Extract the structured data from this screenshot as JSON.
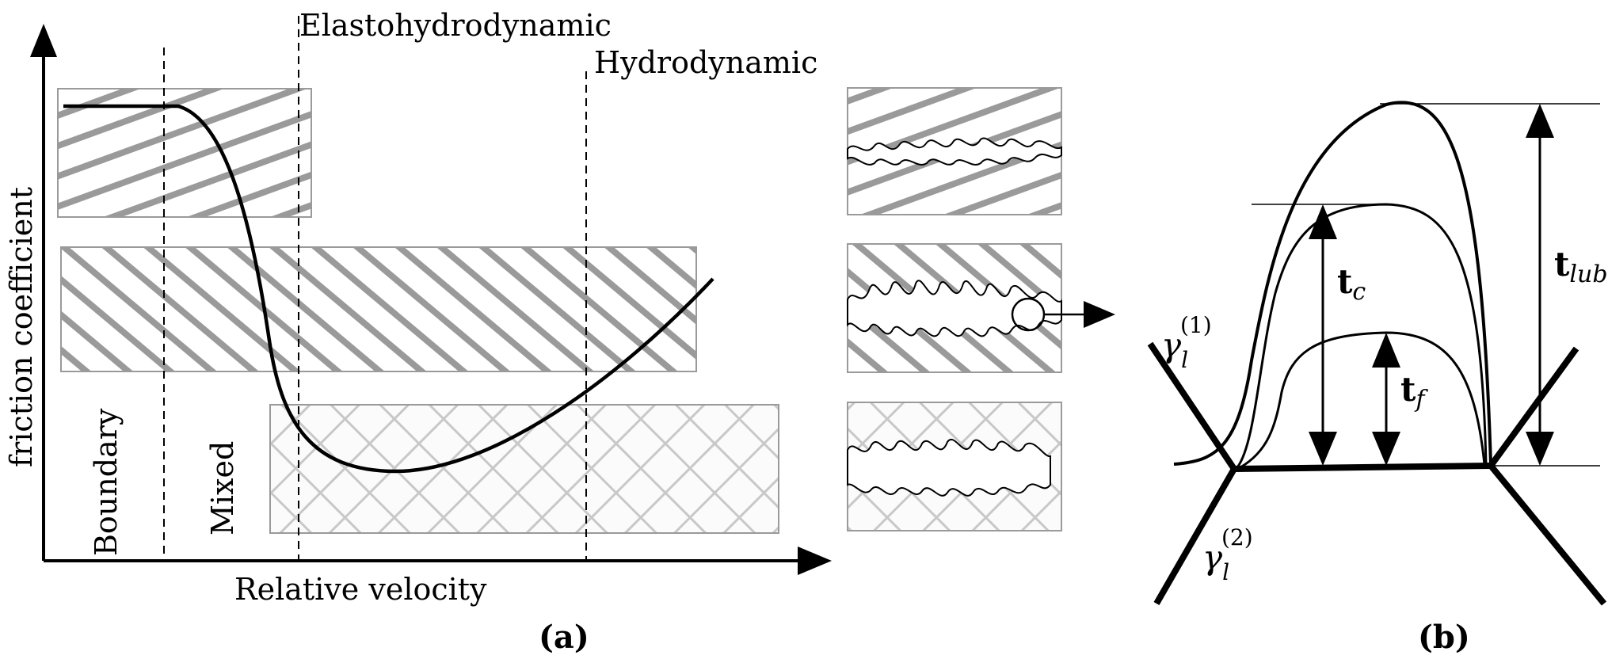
{
  "panel_a": {
    "caption": "(a)",
    "axis_x_label": "Relative velocity",
    "axis_y_label": "friction coefficient",
    "regimes": {
      "boundary": "Boundary",
      "mixed": "Mixed",
      "elastohydrodynamic": "Elastohydrodynamic",
      "hydrodynamic": "Hydrodynamic"
    }
  },
  "panel_b": {
    "caption": "(b)",
    "t_lub": {
      "base": "t",
      "sub": "lub"
    },
    "t_c": {
      "base": "t",
      "sub": "c"
    },
    "t_f": {
      "base": "t",
      "sub": "f"
    },
    "gamma_1": {
      "base": "γ",
      "sub": "l",
      "sup": "(1)"
    },
    "gamma_2": {
      "base": "γ",
      "sub": "l",
      "sup": "(2)"
    }
  },
  "colors": {
    "hatch": "#9a9a9a",
    "crosshatch": "#c8c8c8",
    "box_border": "#9a9a9a",
    "ink": "#000000"
  }
}
